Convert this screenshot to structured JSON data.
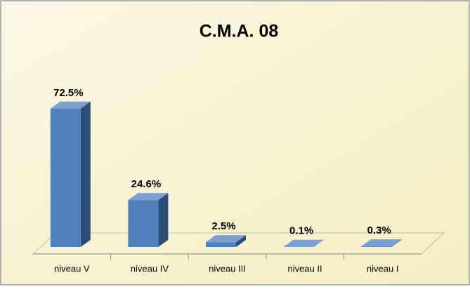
{
  "chart_data": {
    "type": "bar",
    "title": "C.M.A. 08",
    "categories": [
      "niveau V",
      "niveau IV",
      "niveau III",
      "niveau II",
      "niveau I"
    ],
    "values": [
      72.5,
      24.6,
      2.5,
      0.1,
      0.3
    ],
    "value_labels": [
      "72.5%",
      "24.6%",
      "2.5%",
      "0.1%",
      "0.3%"
    ],
    "color": "#4f81bd"
  }
}
